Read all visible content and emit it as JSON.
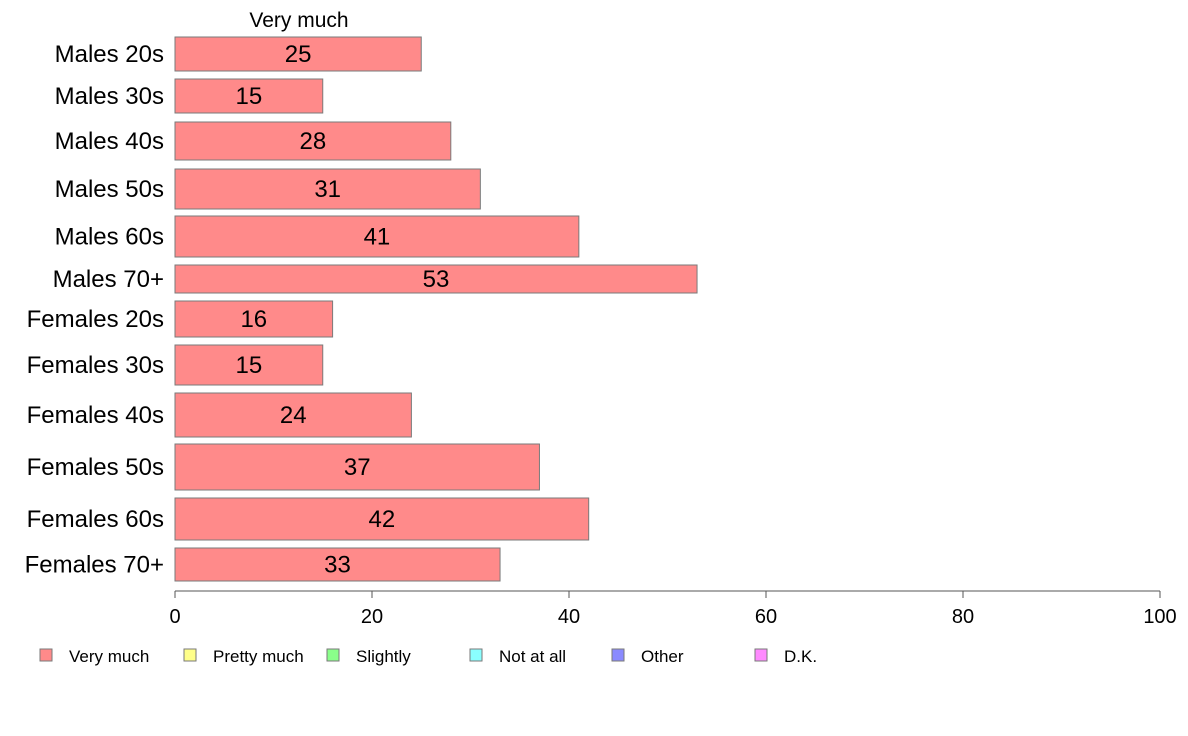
{
  "chart_data": {
    "type": "bar",
    "orientation": "horizontal",
    "stacked": true,
    "header_label": "Very much",
    "categories": [
      "Males 20s",
      "Males 30s",
      "Males 40s",
      "Males 50s",
      "Males 60s",
      "Males 70+",
      "Females 20s",
      "Females 30s",
      "Females 40s",
      "Females 50s",
      "Females 60s",
      "Females 70+"
    ],
    "series": [
      {
        "name": "Very much",
        "color": "#ff8a8a",
        "values": [
          25,
          15,
          28,
          31,
          41,
          53,
          16,
          15,
          24,
          37,
          42,
          33
        ]
      }
    ],
    "xlim": [
      0,
      100
    ],
    "xticks": [
      0,
      20,
      40,
      60,
      80,
      100
    ],
    "grid": false,
    "legend": {
      "position": "bottom",
      "entries": [
        {
          "label": "Very much",
          "color": "#ff8a8a"
        },
        {
          "label": "Pretty much",
          "color": "#ffff8a"
        },
        {
          "label": "Slightly",
          "color": "#8aff8a"
        },
        {
          "label": "Not at all",
          "color": "#8affff"
        },
        {
          "label": "Other",
          "color": "#8a8aff"
        },
        {
          "label": "D.K.",
          "color": "#ff8aff"
        }
      ]
    }
  }
}
